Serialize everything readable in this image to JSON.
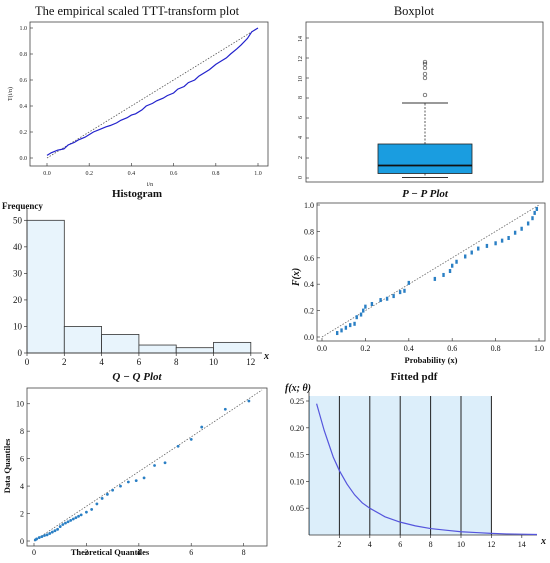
{
  "chart_data": [
    {
      "type": "line",
      "title": "The empirical scaled TTT-transform plot",
      "xlabel": "i/n",
      "ylabel": "T(i/n)",
      "xlim": [
        0,
        1
      ],
      "ylim": [
        0,
        1
      ],
      "xticks": [
        "0.0",
        "0.2",
        "0.4",
        "0.6",
        "0.8",
        "1.0"
      ],
      "yticks": [
        "0.0",
        "0.2",
        "0.4",
        "0.6",
        "0.8",
        "1.0"
      ],
      "reference_line": "dotted diagonal",
      "series": [
        {
          "color": "#2222cc",
          "x": [
            0.0,
            0.02,
            0.05,
            0.08,
            0.1,
            0.13,
            0.15,
            0.18,
            0.2,
            0.22,
            0.25,
            0.28,
            0.3,
            0.33,
            0.35,
            0.38,
            0.4,
            0.42,
            0.45,
            0.47,
            0.5,
            0.52,
            0.55,
            0.57,
            0.6,
            0.62,
            0.65,
            0.67,
            0.7,
            0.72,
            0.75,
            0.77,
            0.8,
            0.82,
            0.85,
            0.87,
            0.9,
            0.92,
            0.95,
            0.97,
            1.0
          ],
          "y": [
            0.02,
            0.04,
            0.06,
            0.07,
            0.1,
            0.12,
            0.14,
            0.16,
            0.18,
            0.2,
            0.22,
            0.24,
            0.25,
            0.27,
            0.29,
            0.31,
            0.33,
            0.34,
            0.37,
            0.4,
            0.42,
            0.44,
            0.46,
            0.48,
            0.5,
            0.53,
            0.55,
            0.58,
            0.6,
            0.63,
            0.66,
            0.68,
            0.72,
            0.74,
            0.77,
            0.8,
            0.84,
            0.87,
            0.92,
            0.97,
            1.0
          ]
        }
      ]
    },
    {
      "type": "box",
      "title": "Boxplot",
      "ylim": [
        0,
        15
      ],
      "yticks": [
        "0",
        "2",
        "4",
        "6",
        "8",
        "10",
        "12",
        "14"
      ],
      "box": {
        "whisker_low": 0.05,
        "q1": 0.45,
        "median": 1.25,
        "q3": 3.4,
        "whisker_high": 7.5,
        "color": "#1a9de0"
      },
      "outliers": [
        8.3,
        10.0,
        10.4,
        11.0,
        11.4,
        11.6
      ]
    },
    {
      "type": "bar",
      "title": "Histogram",
      "ylabel": "Frequency",
      "xlabel": "x",
      "bins": [
        [
          0,
          2
        ],
        [
          2,
          4
        ],
        [
          4,
          6
        ],
        [
          6,
          8
        ],
        [
          8,
          10
        ],
        [
          10,
          12
        ]
      ],
      "values": [
        50,
        10,
        7,
        3,
        2,
        4
      ],
      "xticks": [
        "0",
        "2",
        "4",
        "6",
        "8",
        "10",
        "12"
      ],
      "yticks": [
        "0",
        "10",
        "20",
        "30",
        "40",
        "50"
      ],
      "xlim": [
        0,
        12.6
      ],
      "ylim": [
        0,
        52
      ],
      "fill": "#e8f4fc"
    },
    {
      "type": "scatter",
      "title": "P − P Plot",
      "xlabel": "Probability (x)",
      "ylabel": "F(x)",
      "xlim": [
        0,
        1
      ],
      "ylim": [
        0,
        1
      ],
      "xticks": [
        "0.0",
        "0.2",
        "0.4",
        "0.6",
        "0.8",
        "1.0"
      ],
      "yticks": [
        "0.0",
        "0.2",
        "0.4",
        "0.6",
        "0.8",
        "1.0"
      ],
      "reference_line": "dotted diagonal",
      "points": {
        "x": [
          0.07,
          0.09,
          0.11,
          0.13,
          0.15,
          0.16,
          0.18,
          0.19,
          0.2,
          0.23,
          0.27,
          0.3,
          0.33,
          0.36,
          0.38,
          0.4,
          0.52,
          0.56,
          0.59,
          0.6,
          0.62,
          0.66,
          0.69,
          0.72,
          0.76,
          0.8,
          0.83,
          0.86,
          0.89,
          0.92,
          0.95,
          0.97,
          0.98,
          0.99
        ],
        "y": [
          0.03,
          0.05,
          0.07,
          0.09,
          0.1,
          0.15,
          0.17,
          0.2,
          0.23,
          0.25,
          0.28,
          0.29,
          0.31,
          0.34,
          0.35,
          0.41,
          0.44,
          0.47,
          0.5,
          0.54,
          0.57,
          0.61,
          0.64,
          0.67,
          0.69,
          0.71,
          0.73,
          0.75,
          0.79,
          0.82,
          0.86,
          0.9,
          0.94,
          0.97
        ]
      }
    },
    {
      "type": "scatter",
      "title": "Q − Q Plot",
      "xlabel": "Theoretical Quantiles",
      "ylabel": "Data Quantiles",
      "xlim": [
        0,
        8.7
      ],
      "ylim": [
        0,
        11
      ],
      "xticks": [
        "0",
        "2",
        "4",
        "6",
        "8"
      ],
      "yticks": [
        "0",
        "2",
        "4",
        "6",
        "8",
        "10"
      ],
      "reference_line": "dotted",
      "points": {
        "x": [
          0.05,
          0.1,
          0.2,
          0.3,
          0.4,
          0.5,
          0.6,
          0.7,
          0.8,
          0.9,
          1.0,
          1.1,
          1.2,
          1.3,
          1.4,
          1.5,
          1.6,
          1.7,
          1.8,
          2.0,
          2.2,
          2.4,
          2.6,
          2.8,
          3.0,
          3.3,
          3.6,
          3.9,
          4.2,
          4.6,
          5.0,
          5.5,
          6.0,
          6.4,
          7.3,
          8.2
        ],
        "y": [
          0.08,
          0.15,
          0.25,
          0.32,
          0.4,
          0.45,
          0.55,
          0.65,
          0.75,
          0.85,
          1.05,
          1.2,
          1.3,
          1.4,
          1.5,
          1.6,
          1.7,
          1.8,
          1.9,
          2.1,
          2.3,
          2.7,
          3.1,
          3.4,
          3.7,
          4.0,
          4.3,
          4.4,
          4.6,
          5.5,
          5.7,
          6.9,
          7.4,
          8.3,
          9.6,
          10.2
        ]
      }
    },
    {
      "type": "area",
      "title": "Fitted pdf",
      "ylabel": "f(x; θ)",
      "xlabel": "x",
      "xlim": [
        0,
        15
      ],
      "ylim": [
        0,
        0.25
      ],
      "xticks": [
        "2",
        "4",
        "6",
        "8",
        "10",
        "12",
        "14"
      ],
      "yticks": [
        "0.05",
        "0.10",
        "0.15",
        "0.20",
        "0.25"
      ],
      "histogram_bins": [
        [
          0,
          2
        ],
        [
          2,
          4
        ],
        [
          4,
          6
        ],
        [
          6,
          8
        ],
        [
          8,
          10
        ],
        [
          10,
          12
        ]
      ],
      "histogram_fill": "#dceefa",
      "curve_color": "#5555dd",
      "curve": {
        "x": [
          0.5,
          0.8,
          1.0,
          1.3,
          1.6,
          2.0,
          2.5,
          3.0,
          3.5,
          4.0,
          5.0,
          6.0,
          7.0,
          8.0,
          9.0,
          10.0,
          11.0,
          12.0,
          13.0,
          14.0,
          15.0
        ],
        "y": [
          0.245,
          0.215,
          0.195,
          0.17,
          0.145,
          0.12,
          0.095,
          0.075,
          0.06,
          0.05,
          0.034,
          0.024,
          0.017,
          0.012,
          0.009,
          0.006,
          0.0045,
          0.003,
          0.002,
          0.0015,
          0.001
        ]
      }
    }
  ]
}
